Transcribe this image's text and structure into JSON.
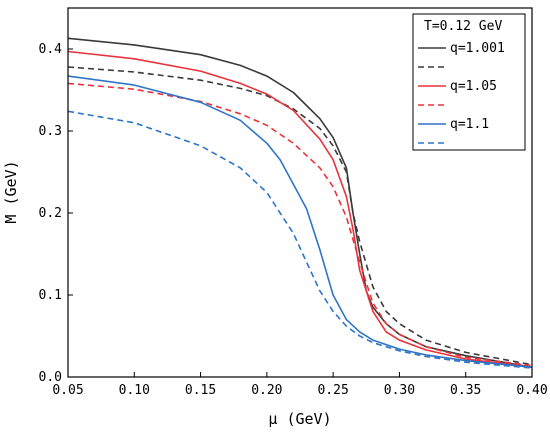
{
  "chart_data": {
    "type": "line",
    "xlabel": "μ (GeV)",
    "ylabel": "M (GeV)",
    "xlim": [
      0.05,
      0.4
    ],
    "ylim": [
      0.0,
      0.45
    ],
    "xticks": [
      "0.05",
      "0.10",
      "0.15",
      "0.20",
      "0.25",
      "0.30",
      "0.35",
      "0.40"
    ],
    "yticks": [
      "0.0",
      "0.1",
      "0.2",
      "0.3",
      "0.4"
    ],
    "legend_title": "T=0.12 GeV",
    "legend_position": "top-right",
    "grid": false,
    "series": [
      {
        "name": "q=1.001",
        "color": "#3a3a3a",
        "dash": "solid",
        "x": [
          0.05,
          0.1,
          0.15,
          0.18,
          0.2,
          0.22,
          0.24,
          0.25,
          0.26,
          0.265,
          0.27,
          0.275,
          0.28,
          0.29,
          0.3,
          0.32,
          0.35,
          0.4
        ],
        "y": [
          0.413,
          0.405,
          0.393,
          0.38,
          0.367,
          0.347,
          0.315,
          0.292,
          0.255,
          0.2,
          0.15,
          0.105,
          0.085,
          0.065,
          0.052,
          0.037,
          0.026,
          0.012
        ]
      },
      {
        "name": "",
        "color": "#3a3a3a",
        "dash": "dashed",
        "x": [
          0.05,
          0.1,
          0.15,
          0.18,
          0.2,
          0.22,
          0.24,
          0.25,
          0.26,
          0.265,
          0.27,
          0.28,
          0.29,
          0.3,
          0.32,
          0.35,
          0.4
        ],
        "y": [
          0.378,
          0.372,
          0.362,
          0.352,
          0.343,
          0.327,
          0.303,
          0.282,
          0.25,
          0.2,
          0.165,
          0.11,
          0.08,
          0.065,
          0.045,
          0.03,
          0.015
        ]
      },
      {
        "name": "q=1.05",
        "color": "#e8333b",
        "dash": "solid",
        "x": [
          0.05,
          0.1,
          0.15,
          0.18,
          0.2,
          0.22,
          0.24,
          0.25,
          0.26,
          0.265,
          0.27,
          0.28,
          0.29,
          0.3,
          0.32,
          0.35,
          0.4
        ],
        "y": [
          0.397,
          0.388,
          0.373,
          0.358,
          0.345,
          0.325,
          0.29,
          0.265,
          0.22,
          0.18,
          0.13,
          0.08,
          0.055,
          0.045,
          0.033,
          0.022,
          0.012
        ]
      },
      {
        "name": "",
        "color": "#e8333b",
        "dash": "dashed",
        "x": [
          0.05,
          0.1,
          0.15,
          0.18,
          0.2,
          0.22,
          0.24,
          0.25,
          0.26,
          0.27,
          0.28,
          0.29,
          0.3,
          0.32,
          0.35,
          0.4
        ],
        "y": [
          0.358,
          0.351,
          0.336,
          0.321,
          0.307,
          0.285,
          0.255,
          0.232,
          0.195,
          0.14,
          0.09,
          0.065,
          0.052,
          0.037,
          0.024,
          0.014
        ]
      },
      {
        "name": "q=1.1",
        "color": "#2e75c8",
        "dash": "solid",
        "x": [
          0.05,
          0.1,
          0.15,
          0.18,
          0.2,
          0.21,
          0.22,
          0.23,
          0.24,
          0.25,
          0.26,
          0.27,
          0.28,
          0.3,
          0.32,
          0.35,
          0.4
        ],
        "y": [
          0.367,
          0.356,
          0.335,
          0.313,
          0.285,
          0.265,
          0.235,
          0.205,
          0.155,
          0.1,
          0.07,
          0.055,
          0.045,
          0.034,
          0.027,
          0.02,
          0.012
        ]
      },
      {
        "name": "",
        "color": "#2e75c8",
        "dash": "dashed",
        "x": [
          0.05,
          0.1,
          0.15,
          0.18,
          0.2,
          0.22,
          0.23,
          0.24,
          0.25,
          0.26,
          0.27,
          0.28,
          0.3,
          0.32,
          0.35,
          0.4
        ],
        "y": [
          0.324,
          0.31,
          0.282,
          0.255,
          0.225,
          0.175,
          0.14,
          0.105,
          0.08,
          0.062,
          0.05,
          0.042,
          0.032,
          0.025,
          0.018,
          0.011
        ]
      }
    ]
  }
}
